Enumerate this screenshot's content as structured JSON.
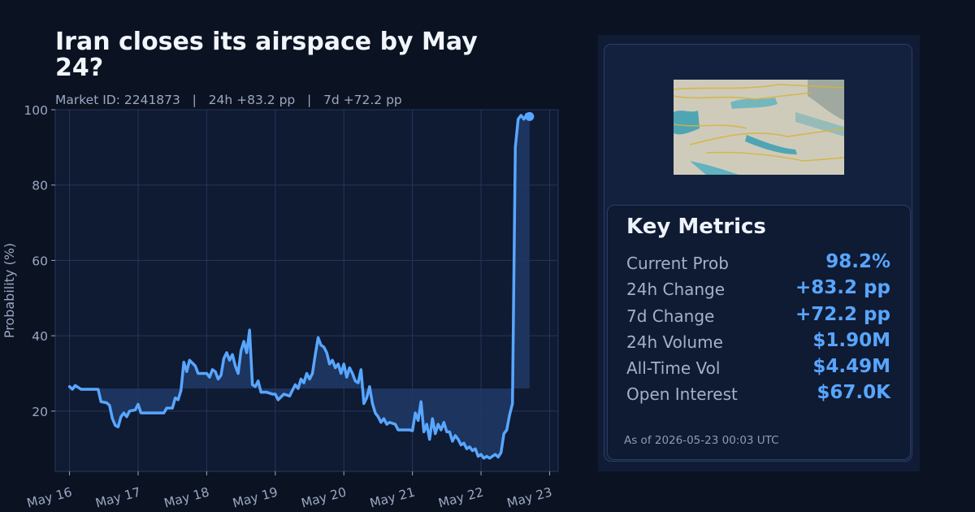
{
  "header": {
    "title": "Iran closes its airspace by May 24?",
    "subtitle": "Market ID: 2241873   |   24h +83.2 pp   |   7d +72.2 pp"
  },
  "colors": {
    "line": "#58a6ff",
    "fill": "#1e3a66",
    "plot_bg": "#0f1a33",
    "grid": "#26365a",
    "text": "#9aa8c2"
  },
  "chart_data": {
    "type": "line",
    "title": "Iran closes its airspace by May 24?",
    "xlabel": "",
    "ylabel": "Probability (%)",
    "x_range": [
      "2026-05-15 19:00",
      "2026-05-23 03:00"
    ],
    "ylim": [
      4,
      100
    ],
    "grid": true,
    "baseline": 26,
    "x_ticks": [
      "May 16",
      "May 17",
      "May 18",
      "May 19",
      "May 20",
      "May 21",
      "May 22",
      "May 23"
    ],
    "y_ticks": [
      20,
      40,
      60,
      80,
      100
    ],
    "series": [
      {
        "points": [
          [
            "2026-05-16 00:00",
            26.5
          ],
          [
            "2026-05-16 01:00",
            25.8
          ],
          [
            "2026-05-16 02:00",
            26.8
          ],
          [
            "2026-05-16 04:00",
            25.8
          ],
          [
            "2026-05-16 10:00",
            25.8
          ],
          [
            "2026-05-16 11:00",
            22.5
          ],
          [
            "2026-05-16 13:00",
            22.2
          ],
          [
            "2026-05-16 14:00",
            21.5
          ],
          [
            "2026-05-16 15:00",
            18.0
          ],
          [
            "2026-05-16 16:00",
            16.2
          ],
          [
            "2026-05-16 17:00",
            15.8
          ],
          [
            "2026-05-16 18:00",
            18.5
          ],
          [
            "2026-05-16 19:00",
            19.5
          ],
          [
            "2026-05-16 20:00",
            18.5
          ],
          [
            "2026-05-16 21:00",
            20.0
          ],
          [
            "2026-05-16 23:00",
            20.3
          ],
          [
            "2026-05-17 00:00",
            21.8
          ],
          [
            "2026-05-17 01:00",
            19.5
          ],
          [
            "2026-05-17 09:00",
            19.5
          ],
          [
            "2026-05-17 10:00",
            20.8
          ],
          [
            "2026-05-17 12:00",
            20.8
          ],
          [
            "2026-05-17 13:00",
            23.5
          ],
          [
            "2026-05-17 14:00",
            23.0
          ],
          [
            "2026-05-17 15:00",
            25.5
          ],
          [
            "2026-05-17 16:00",
            33.0
          ],
          [
            "2026-05-17 17:00",
            30.5
          ],
          [
            "2026-05-17 18:00",
            33.5
          ],
          [
            "2026-05-17 20:00",
            32.0
          ],
          [
            "2026-05-17 21:00",
            30.0
          ],
          [
            "2026-05-18 00:00",
            30.0
          ],
          [
            "2026-05-18 01:00",
            29.0
          ],
          [
            "2026-05-18 02:00",
            31.0
          ],
          [
            "2026-05-18 03:00",
            30.5
          ],
          [
            "2026-05-18 04:00",
            28.5
          ],
          [
            "2026-05-18 05:00",
            29.5
          ],
          [
            "2026-05-18 06:00",
            34.0
          ],
          [
            "2026-05-18 07:00",
            35.5
          ],
          [
            "2026-05-18 08:00",
            33.5
          ],
          [
            "2026-05-18 09:00",
            35.0
          ],
          [
            "2026-05-18 10:00",
            32.0
          ],
          [
            "2026-05-18 11:00",
            30.0
          ],
          [
            "2026-05-18 12:00",
            36.0
          ],
          [
            "2026-05-18 13:00",
            38.5
          ],
          [
            "2026-05-18 14:00",
            35.5
          ],
          [
            "2026-05-18 15:00",
            41.5
          ],
          [
            "2026-05-18 16:00",
            27.0
          ],
          [
            "2026-05-18 17:00",
            26.5
          ],
          [
            "2026-05-18 18:00",
            28.0
          ],
          [
            "2026-05-18 19:00",
            25.0
          ],
          [
            "2026-05-18 21:00",
            25.0
          ],
          [
            "2026-05-18 23:00",
            24.5
          ],
          [
            "2026-05-19 00:00",
            24.5
          ],
          [
            "2026-05-19 01:00",
            23.0
          ],
          [
            "2026-05-19 03:00",
            24.5
          ],
          [
            "2026-05-19 05:00",
            24.0
          ],
          [
            "2026-05-19 06:00",
            25.5
          ],
          [
            "2026-05-19 07:00",
            27.0
          ],
          [
            "2026-05-19 08:00",
            26.0
          ],
          [
            "2026-05-19 09:00",
            28.5
          ],
          [
            "2026-05-19 10:00",
            27.5
          ],
          [
            "2026-05-19 11:00",
            30.0
          ],
          [
            "2026-05-19 12:00",
            28.5
          ],
          [
            "2026-05-19 13:00",
            30.0
          ],
          [
            "2026-05-19 14:00",
            35.0
          ],
          [
            "2026-05-19 15:00",
            39.5
          ],
          [
            "2026-05-19 16:00",
            37.5
          ],
          [
            "2026-05-19 17:00",
            37.0
          ],
          [
            "2026-05-19 18:00",
            35.5
          ],
          [
            "2026-05-19 19:00",
            32.5
          ],
          [
            "2026-05-19 20:00",
            33.5
          ],
          [
            "2026-05-19 21:00",
            31.5
          ],
          [
            "2026-05-19 22:00",
            32.5
          ],
          [
            "2026-05-19 23:00",
            30.0
          ],
          [
            "2026-05-20 00:00",
            32.5
          ],
          [
            "2026-05-20 01:00",
            29.0
          ],
          [
            "2026-05-20 02:00",
            31.5
          ],
          [
            "2026-05-20 03:00",
            30.0
          ],
          [
            "2026-05-20 04:00",
            28.0
          ],
          [
            "2026-05-20 05:00",
            27.5
          ],
          [
            "2026-05-20 06:00",
            31.0
          ],
          [
            "2026-05-20 07:00",
            22.0
          ],
          [
            "2026-05-20 08:00",
            23.5
          ],
          [
            "2026-05-20 09:00",
            26.5
          ],
          [
            "2026-05-20 10:00",
            22.0
          ],
          [
            "2026-05-20 11:00",
            19.5
          ],
          [
            "2026-05-20 12:00",
            18.5
          ],
          [
            "2026-05-20 13:00",
            17.0
          ],
          [
            "2026-05-20 14:00",
            18.0
          ],
          [
            "2026-05-20 15:00",
            16.5
          ],
          [
            "2026-05-20 16:00",
            17.0
          ],
          [
            "2026-05-20 18:00",
            16.5
          ],
          [
            "2026-05-20 19:00",
            15.0
          ],
          [
            "2026-05-20 23:00",
            15.0
          ],
          [
            "2026-05-21 00:00",
            14.8
          ],
          [
            "2026-05-21 01:00",
            19.5
          ],
          [
            "2026-05-21 02:00",
            17.5
          ],
          [
            "2026-05-21 03:00",
            22.5
          ],
          [
            "2026-05-21 04:00",
            14.5
          ],
          [
            "2026-05-21 05:00",
            16.5
          ],
          [
            "2026-05-21 06:00",
            12.5
          ],
          [
            "2026-05-21 07:00",
            18.0
          ],
          [
            "2026-05-21 08:00",
            14.0
          ],
          [
            "2026-05-21 09:00",
            16.5
          ],
          [
            "2026-05-21 10:00",
            15.0
          ],
          [
            "2026-05-21 11:00",
            17.0
          ],
          [
            "2026-05-21 12:00",
            14.5
          ],
          [
            "2026-05-21 13:00",
            14.5
          ],
          [
            "2026-05-21 14:00",
            12.0
          ],
          [
            "2026-05-21 15:00",
            13.5
          ],
          [
            "2026-05-21 16:00",
            12.5
          ],
          [
            "2026-05-21 17:00",
            11.0
          ],
          [
            "2026-05-21 18:00",
            11.5
          ],
          [
            "2026-05-21 19:00",
            10.0
          ],
          [
            "2026-05-21 20:00",
            10.5
          ],
          [
            "2026-05-21 21:00",
            9.5
          ],
          [
            "2026-05-21 22:00",
            10.0
          ],
          [
            "2026-05-21 23:00",
            8.0
          ],
          [
            "2026-05-22 00:00",
            8.5
          ],
          [
            "2026-05-22 01:00",
            7.5
          ],
          [
            "2026-05-22 02:00",
            8.0
          ],
          [
            "2026-05-22 03:00",
            7.5
          ],
          [
            "2026-05-22 04:00",
            8.0
          ],
          [
            "2026-05-22 05:00",
            8.5
          ],
          [
            "2026-05-22 06:00",
            7.8
          ],
          [
            "2026-05-22 07:00",
            9.0
          ],
          [
            "2026-05-22 08:00",
            14.0
          ],
          [
            "2026-05-22 09:00",
            15.0
          ],
          [
            "2026-05-22 10:00",
            19.0
          ],
          [
            "2026-05-22 11:00",
            22.0
          ],
          [
            "2026-05-22 12:00",
            90.0
          ],
          [
            "2026-05-22 13:00",
            97.5
          ],
          [
            "2026-05-22 14:00",
            98.5
          ],
          [
            "2026-05-22 15:00",
            97.5
          ],
          [
            "2026-05-22 16:00",
            98.8
          ],
          [
            "2026-05-22 17:00",
            98.2
          ]
        ]
      }
    ]
  },
  "metrics": {
    "title": "Key Metrics",
    "rows": [
      {
        "label": "Current Prob",
        "value": "98.2%"
      },
      {
        "label": "24h Change",
        "value": "+83.2 pp"
      },
      {
        "label": "7d Change",
        "value": "+72.2 pp"
      },
      {
        "label": "24h Volume",
        "value": "$1.90M"
      },
      {
        "label": "All-Time Vol",
        "value": "$4.49M"
      },
      {
        "label": "Open Interest",
        "value": "$67.0K"
      }
    ],
    "as_of": "As of 2026-05-23 00:03 UTC"
  },
  "map_image": {
    "icon": "airspace-map-thumbnail"
  }
}
